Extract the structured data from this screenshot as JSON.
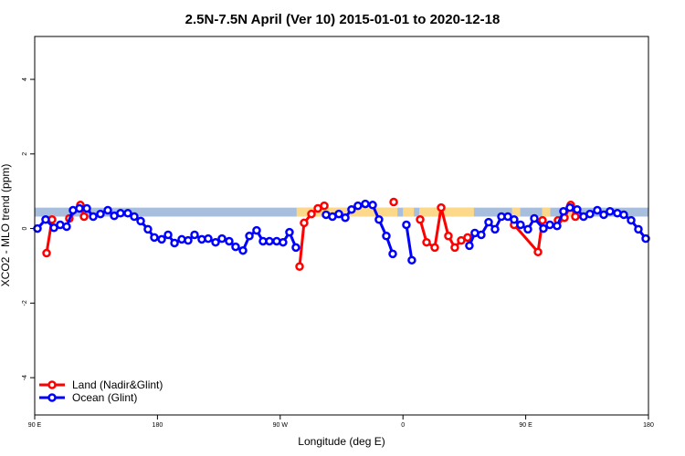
{
  "chart_data": {
    "type": "line",
    "title": "2.5N-7.5N April (Ver 10)   2015-01-01 to 2020-12-18",
    "x_label": "Longitude (deg E)",
    "y_label": "XCO2 - MLO trend (ppm)",
    "xlim": [
      90,
      540
    ],
    "ylim": [
      -5,
      5.15
    ],
    "xticks": [
      {
        "value": 90,
        "label": "90 E"
      },
      {
        "value": 180,
        "label": "180"
      },
      {
        "value": 270,
        "label": "90 W"
      },
      {
        "value": 360,
        "label": "0"
      },
      {
        "value": 450,
        "label": "90 E"
      },
      {
        "value": 540,
        "label": "180"
      }
    ],
    "yticks": [
      -4,
      -2,
      0,
      2,
      4
    ],
    "band": [
      0.32,
      0.56
    ],
    "band_color": "#a7bfdc",
    "land": [
      [
        282,
        356
      ],
      [
        360,
        368
      ],
      [
        372,
        412
      ],
      [
        440,
        446
      ],
      [
        462,
        468
      ],
      [
        481,
        487
      ]
    ],
    "land_color": "#fcd98a",
    "legend": "bottom-left",
    "series": [
      {
        "name": "Land (Nadir&Glint)",
        "color": "#ff0000",
        "x": [
          98.7,
          102.7,
          null,
          115.4,
          123.5,
          126.2,
          null,
          284.2,
          287.5,
          292.9,
          297.6,
          302.3,
          null,
          353.2,
          null,
          372.6,
          377.3,
          383.3,
          388.0,
          393.3,
          398.0,
          402.7,
          407.4,
          null,
          441.5,
          459.0,
          462.3,
          null,
          473.7,
          478.4,
          483.0,
          486.4
        ],
        "values": [
          -0.66,
          0.24,
          null,
          0.27,
          0.63,
          0.32,
          null,
          -1.02,
          0.15,
          0.39,
          0.54,
          0.61,
          null,
          0.71,
          null,
          0.24,
          -0.37,
          -0.51,
          0.56,
          -0.2,
          -0.51,
          -0.32,
          -0.24,
          null,
          0.1,
          -0.63,
          0.22,
          null,
          0.22,
          0.29,
          0.63,
          0.32
        ]
      },
      {
        "name": "Ocean (Glint)",
        "color": "#0000ff",
        "x": [
          92.0,
          98.0,
          104.1,
          108.7,
          113.4,
          118.1,
          122.8,
          128.2,
          132.9,
          138.2,
          143.6,
          148.3,
          152.9,
          158.3,
          163.0,
          167.7,
          173.0,
          177.7,
          183.1,
          187.8,
          192.5,
          197.8,
          202.5,
          207.2,
          212.5,
          217.2,
          222.6,
          227.3,
          232.6,
          237.3,
          242.7,
          247.4,
          252.7,
          257.4,
          262.1,
          267.4,
          272.1,
          276.8,
          281.5,
          null,
          303.6,
          308.3,
          313.0,
          317.7,
          322.3,
          327.0,
          332.4,
          337.8,
          342.4,
          347.8,
          352.5,
          null,
          362.5,
          366.5,
          null,
          408.7,
          412.7,
          417.4,
          422.8,
          427.5,
          432.2,
          436.9,
          441.5,
          446.2,
          451.6,
          456.3,
          463.0,
          467.7,
          473.0,
          477.7,
          482.4,
          487.7,
          492.4,
          497.1,
          502.5,
          507.2,
          511.8,
          517.2,
          521.9,
          527.3,
          532.6,
          538.0
        ],
        "values": [
          0.0,
          0.24,
          0.02,
          0.1,
          0.05,
          0.49,
          0.54,
          0.54,
          0.32,
          0.39,
          0.49,
          0.34,
          0.41,
          0.41,
          0.32,
          0.2,
          -0.02,
          -0.24,
          -0.29,
          -0.17,
          -0.39,
          -0.29,
          -0.32,
          -0.17,
          -0.29,
          -0.27,
          -0.37,
          -0.27,
          -0.34,
          -0.49,
          -0.59,
          -0.2,
          -0.05,
          -0.34,
          -0.34,
          -0.34,
          -0.37,
          -0.1,
          -0.51,
          null,
          0.37,
          0.32,
          0.39,
          0.29,
          0.51,
          0.61,
          0.66,
          0.63,
          0.24,
          -0.2,
          -0.68,
          null,
          0.1,
          -0.85,
          null,
          -0.46,
          -0.12,
          -0.17,
          0.17,
          -0.02,
          0.32,
          0.32,
          0.24,
          0.1,
          -0.02,
          0.27,
          0.0,
          0.1,
          0.07,
          0.46,
          0.56,
          0.51,
          0.32,
          0.39,
          0.49,
          0.37,
          0.46,
          0.41,
          0.37,
          0.22,
          -0.02,
          -0.27
        ]
      }
    ]
  }
}
